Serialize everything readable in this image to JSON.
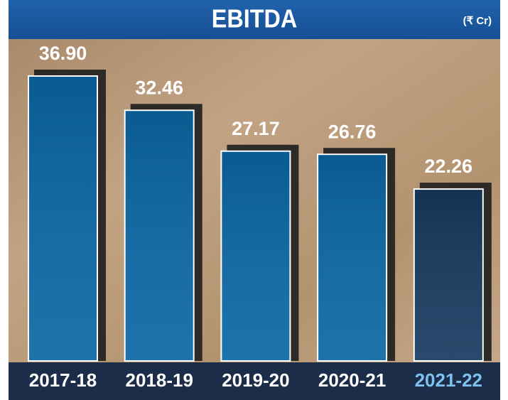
{
  "chart_data": {
    "type": "bar",
    "title": "EBITDA",
    "unit": "(₹ Cr)",
    "categories": [
      "2017-18",
      "2018-19",
      "2019-20",
      "2020-21",
      "2021-22"
    ],
    "values": [
      36.9,
      32.46,
      27.17,
      26.76,
      22.26
    ],
    "value_labels": [
      "36.90",
      "32.46",
      "27.17",
      "26.76",
      "22.26"
    ],
    "colors": [
      "#0b67a6",
      "#0b67a6",
      "#0b67a6",
      "#0b67a6",
      "#163a5f"
    ],
    "category_label_colors": [
      "#ffffff",
      "#ffffff",
      "#ffffff",
      "#ffffff",
      "#7fc1ee"
    ]
  }
}
